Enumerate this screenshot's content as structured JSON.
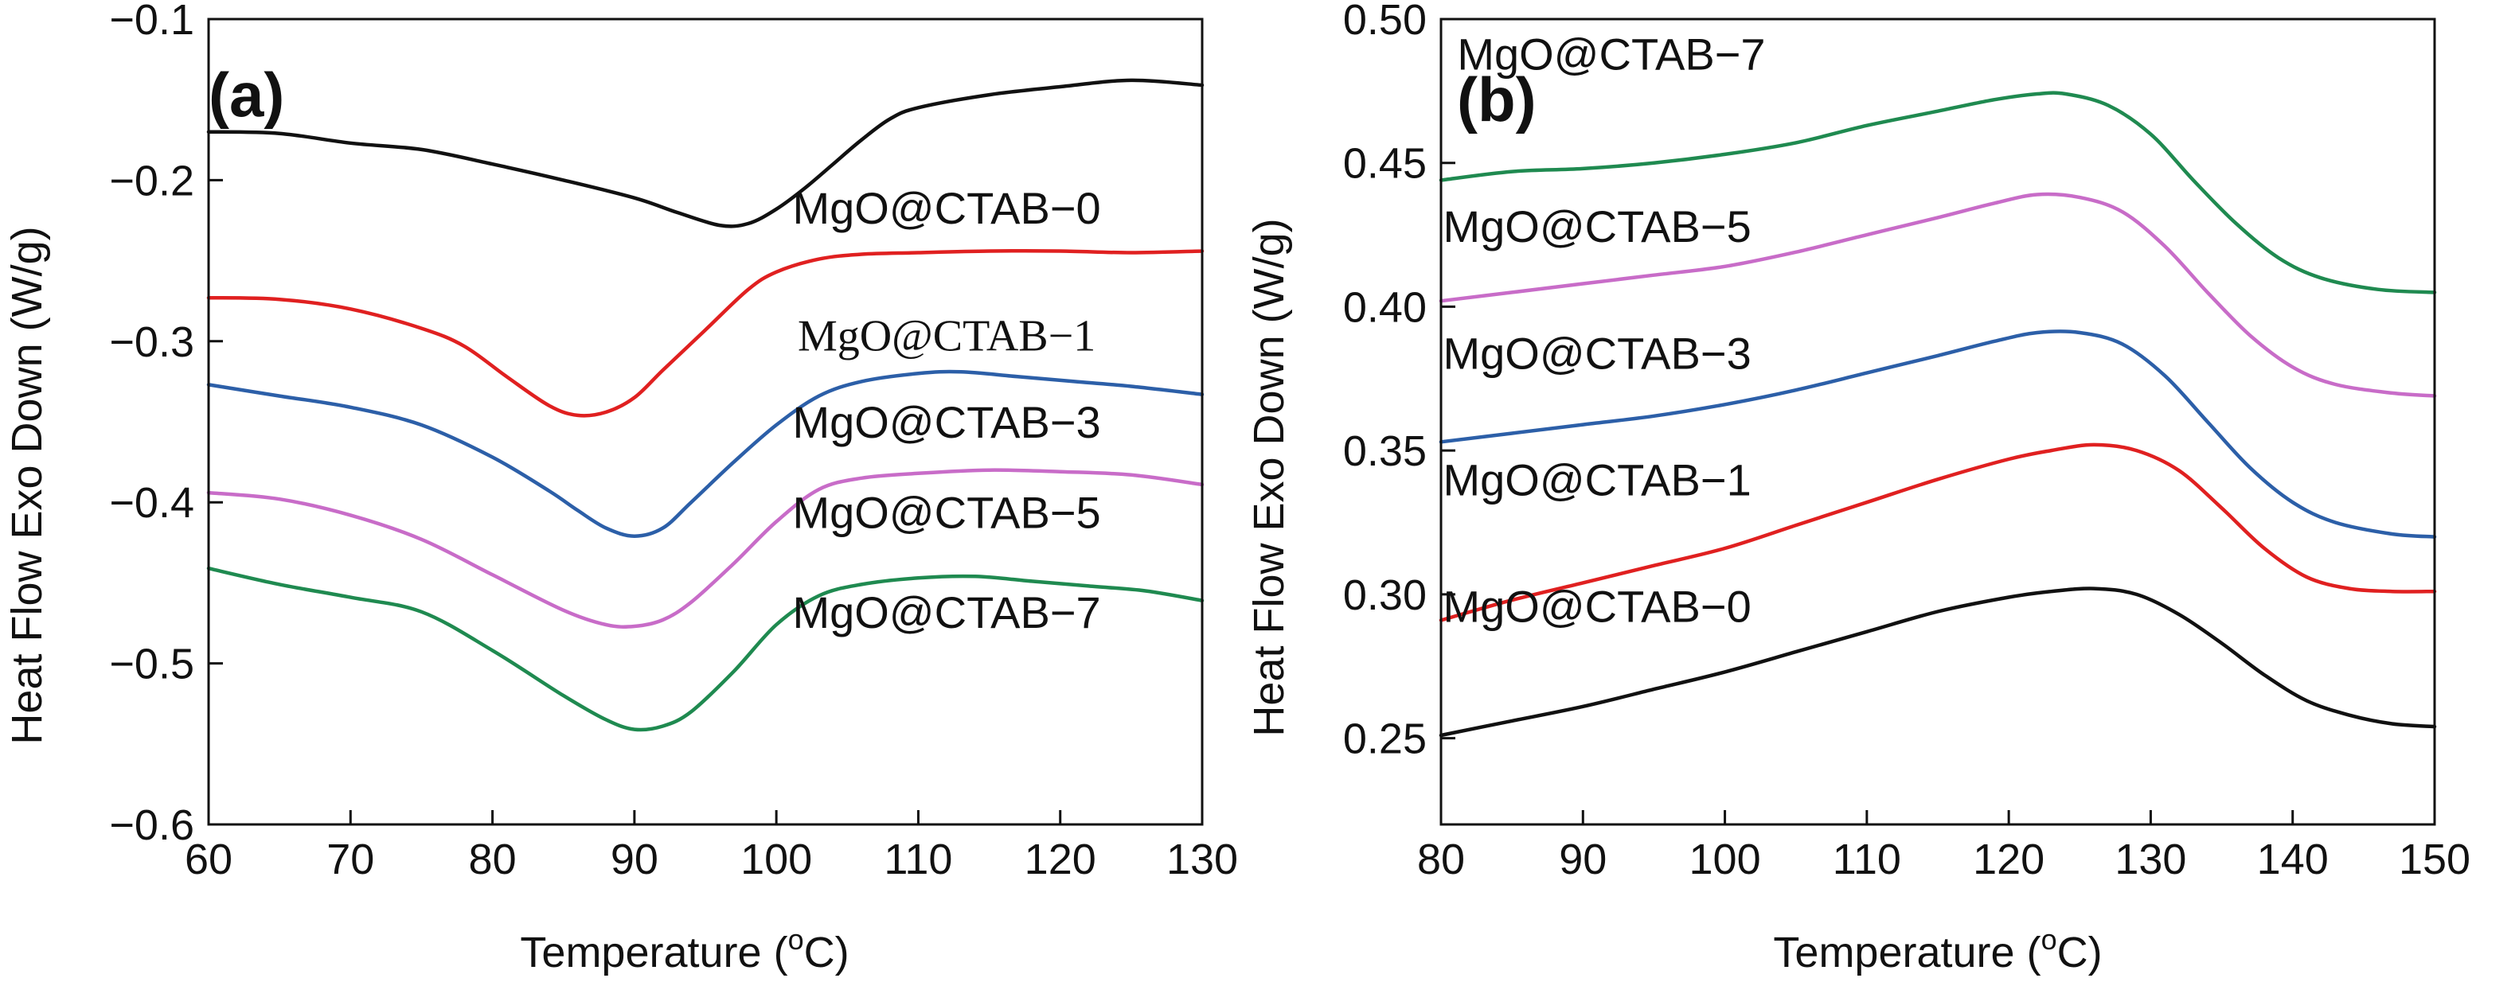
{
  "chart_data": [
    {
      "type": "line",
      "panel_label": "(a)",
      "xlabel": "Temperature (oC)",
      "xlabel_main": "Temperature (",
      "xlabel_sup": "o",
      "xlabel_tail": "C)",
      "ylabel": "Heat Flow Exo Down (W/g)",
      "xlim": [
        60,
        130
      ],
      "ylim": [
        -0.6,
        -0.1
      ],
      "xticks": [
        60,
        70,
        80,
        90,
        100,
        110,
        120,
        130
      ],
      "xtick_labels": [
        "60",
        "70",
        "80",
        "90",
        "100",
        "110",
        "120",
        "130"
      ],
      "yticks": [
        -0.1,
        -0.2,
        -0.3,
        -0.4,
        -0.5,
        -0.6
      ],
      "ytick_labels": [
        "−0.1",
        "−0.2",
        "−0.3",
        "−0.4",
        "−0.5",
        "−0.6"
      ],
      "series": [
        {
          "name": "MgO@CTAB−0",
          "color": "#111111",
          "label_x": 112,
          "label_y": -0.217,
          "x": [
            60,
            65,
            70,
            75,
            80,
            85,
            90,
            93,
            96,
            98,
            100,
            102,
            104,
            106,
            108,
            110,
            115,
            120,
            125,
            130
          ],
          "y": [
            -0.17,
            -0.171,
            -0.177,
            -0.181,
            -0.19,
            -0.2,
            -0.211,
            -0.22,
            -0.228,
            -0.227,
            -0.218,
            -0.205,
            -0.19,
            -0.175,
            -0.162,
            -0.155,
            -0.147,
            -0.142,
            -0.138,
            -0.141
          ]
        },
        {
          "name": "MgO@CTAB−1",
          "color": "#e02020",
          "label_x": 112,
          "label_y": -0.296,
          "serif": true,
          "x": [
            60,
            65,
            70,
            75,
            78,
            81,
            84,
            86,
            88,
            90,
            92,
            95,
            98,
            100,
            103,
            106,
            110,
            115,
            120,
            125,
            130
          ],
          "y": [
            -0.273,
            -0.274,
            -0.28,
            -0.292,
            -0.303,
            -0.322,
            -0.34,
            -0.346,
            -0.344,
            -0.335,
            -0.318,
            -0.293,
            -0.268,
            -0.257,
            -0.249,
            -0.246,
            -0.245,
            -0.244,
            -0.244,
            -0.245,
            -0.244
          ]
        },
        {
          "name": "MgO@CTAB−3",
          "color": "#2c5fa8",
          "label_x": 112,
          "label_y": -0.35,
          "x": [
            60,
            65,
            70,
            75,
            80,
            84,
            86,
            88,
            90,
            92,
            94,
            97,
            100,
            103,
            106,
            110,
            113,
            117,
            121,
            125,
            130
          ],
          "y": [
            -0.327,
            -0.334,
            -0.341,
            -0.352,
            -0.372,
            -0.393,
            -0.405,
            -0.416,
            -0.421,
            -0.416,
            -0.4,
            -0.375,
            -0.352,
            -0.334,
            -0.325,
            -0.32,
            -0.319,
            -0.322,
            -0.325,
            -0.328,
            -0.333
          ]
        },
        {
          "name": "MgO@CTAB−5",
          "color": "#c86cc8",
          "label_x": 112,
          "label_y": -0.406,
          "x": [
            60,
            65,
            70,
            75,
            80,
            85,
            88,
            90,
            92,
            94,
            97,
            100,
            103,
            106,
            110,
            115,
            120,
            125,
            130
          ],
          "y": [
            -0.394,
            -0.398,
            -0.408,
            -0.423,
            -0.445,
            -0.467,
            -0.476,
            -0.477,
            -0.473,
            -0.462,
            -0.438,
            -0.412,
            -0.392,
            -0.385,
            -0.382,
            -0.38,
            -0.381,
            -0.383,
            -0.389
          ]
        },
        {
          "name": "MgO@CTAB−7",
          "color": "#1f8a50",
          "label_x": 112,
          "label_y": -0.468,
          "x": [
            60,
            65,
            70,
            75,
            80,
            85,
            88,
            90,
            92,
            94,
            97,
            100,
            103,
            106,
            110,
            114,
            118,
            122,
            126,
            130
          ],
          "y": [
            -0.441,
            -0.451,
            -0.459,
            -0.468,
            -0.492,
            -0.52,
            -0.535,
            -0.541,
            -0.539,
            -0.53,
            -0.505,
            -0.476,
            -0.458,
            -0.451,
            -0.447,
            -0.446,
            -0.449,
            -0.452,
            -0.455,
            -0.461
          ]
        }
      ]
    },
    {
      "type": "line",
      "panel_label": "(b)",
      "xlabel": "Temperature (oC)",
      "xlabel_main": "Temperature (",
      "xlabel_sup": "o",
      "xlabel_tail": "C)",
      "ylabel": "Heat Flow Exo Down (W/g)",
      "xlim": [
        80,
        150
      ],
      "ylim": [
        0.22,
        0.5
      ],
      "xticks": [
        80,
        90,
        100,
        110,
        120,
        130,
        140,
        150
      ],
      "xtick_labels": [
        "80",
        "90",
        "100",
        "110",
        "120",
        "130",
        "140",
        "150"
      ],
      "yticks": [
        0.25,
        0.3,
        0.35,
        0.4,
        0.45,
        0.5
      ],
      "ytick_labels": [
        "0.25",
        "0.30",
        "0.35",
        "0.40",
        "0.45",
        "0.50"
      ],
      "series": [
        {
          "name": "MgO@CTAB−0",
          "color": "#111111",
          "label_x": 91,
          "label_y": 0.296,
          "x": [
            80,
            85,
            90,
            95,
            100,
            105,
            110,
            115,
            120,
            123,
            126,
            129,
            132,
            135,
            138,
            141,
            144,
            147,
            150
          ],
          "y": [
            0.251,
            0.256,
            0.261,
            0.267,
            0.273,
            0.28,
            0.287,
            0.294,
            0.299,
            0.301,
            0.302,
            0.3,
            0.293,
            0.283,
            0.272,
            0.263,
            0.258,
            0.255,
            0.254
          ]
        },
        {
          "name": "MgO@CTAB−1",
          "color": "#e02020",
          "label_x": 91,
          "label_y": 0.34,
          "x": [
            80,
            85,
            90,
            95,
            100,
            105,
            110,
            115,
            120,
            123,
            126,
            129,
            132,
            135,
            138,
            141,
            144,
            147,
            150
          ],
          "y": [
            0.291,
            0.298,
            0.304,
            0.31,
            0.316,
            0.324,
            0.332,
            0.34,
            0.347,
            0.35,
            0.352,
            0.35,
            0.343,
            0.33,
            0.316,
            0.306,
            0.302,
            0.301,
            0.301
          ]
        },
        {
          "name": "MgO@CTAB−3",
          "color": "#2c5fa8",
          "label_x": 91,
          "label_y": 0.384,
          "x": [
            80,
            85,
            90,
            95,
            100,
            105,
            110,
            115,
            119,
            122,
            125,
            128,
            131,
            134,
            137,
            140,
            143,
            147,
            150
          ],
          "y": [
            0.353,
            0.356,
            0.359,
            0.362,
            0.366,
            0.371,
            0.377,
            0.383,
            0.388,
            0.391,
            0.391,
            0.387,
            0.376,
            0.36,
            0.344,
            0.332,
            0.325,
            0.321,
            0.32
          ]
        },
        {
          "name": "MgO@CTAB−5",
          "color": "#c86cc8",
          "label_x": 91,
          "label_y": 0.428,
          "x": [
            80,
            85,
            90,
            95,
            100,
            105,
            110,
            115,
            119,
            122,
            125,
            128,
            131,
            134,
            137,
            140,
            143,
            147,
            150
          ],
          "y": [
            0.402,
            0.405,
            0.408,
            0.411,
            0.414,
            0.419,
            0.425,
            0.431,
            0.436,
            0.439,
            0.438,
            0.433,
            0.421,
            0.405,
            0.39,
            0.379,
            0.373,
            0.37,
            0.369
          ]
        },
        {
          "name": "MgO@CTAB−7",
          "color": "#1f8a50",
          "label_x": 92,
          "label_y": 0.488,
          "x": [
            80,
            85,
            90,
            95,
            100,
            105,
            110,
            115,
            119,
            122,
            124,
            127,
            130,
            133,
            136,
            139,
            142,
            146,
            150
          ],
          "y": [
            0.444,
            0.447,
            0.448,
            0.45,
            0.453,
            0.457,
            0.463,
            0.468,
            0.472,
            0.474,
            0.474,
            0.47,
            0.46,
            0.444,
            0.429,
            0.417,
            0.41,
            0.406,
            0.405
          ]
        }
      ]
    }
  ]
}
